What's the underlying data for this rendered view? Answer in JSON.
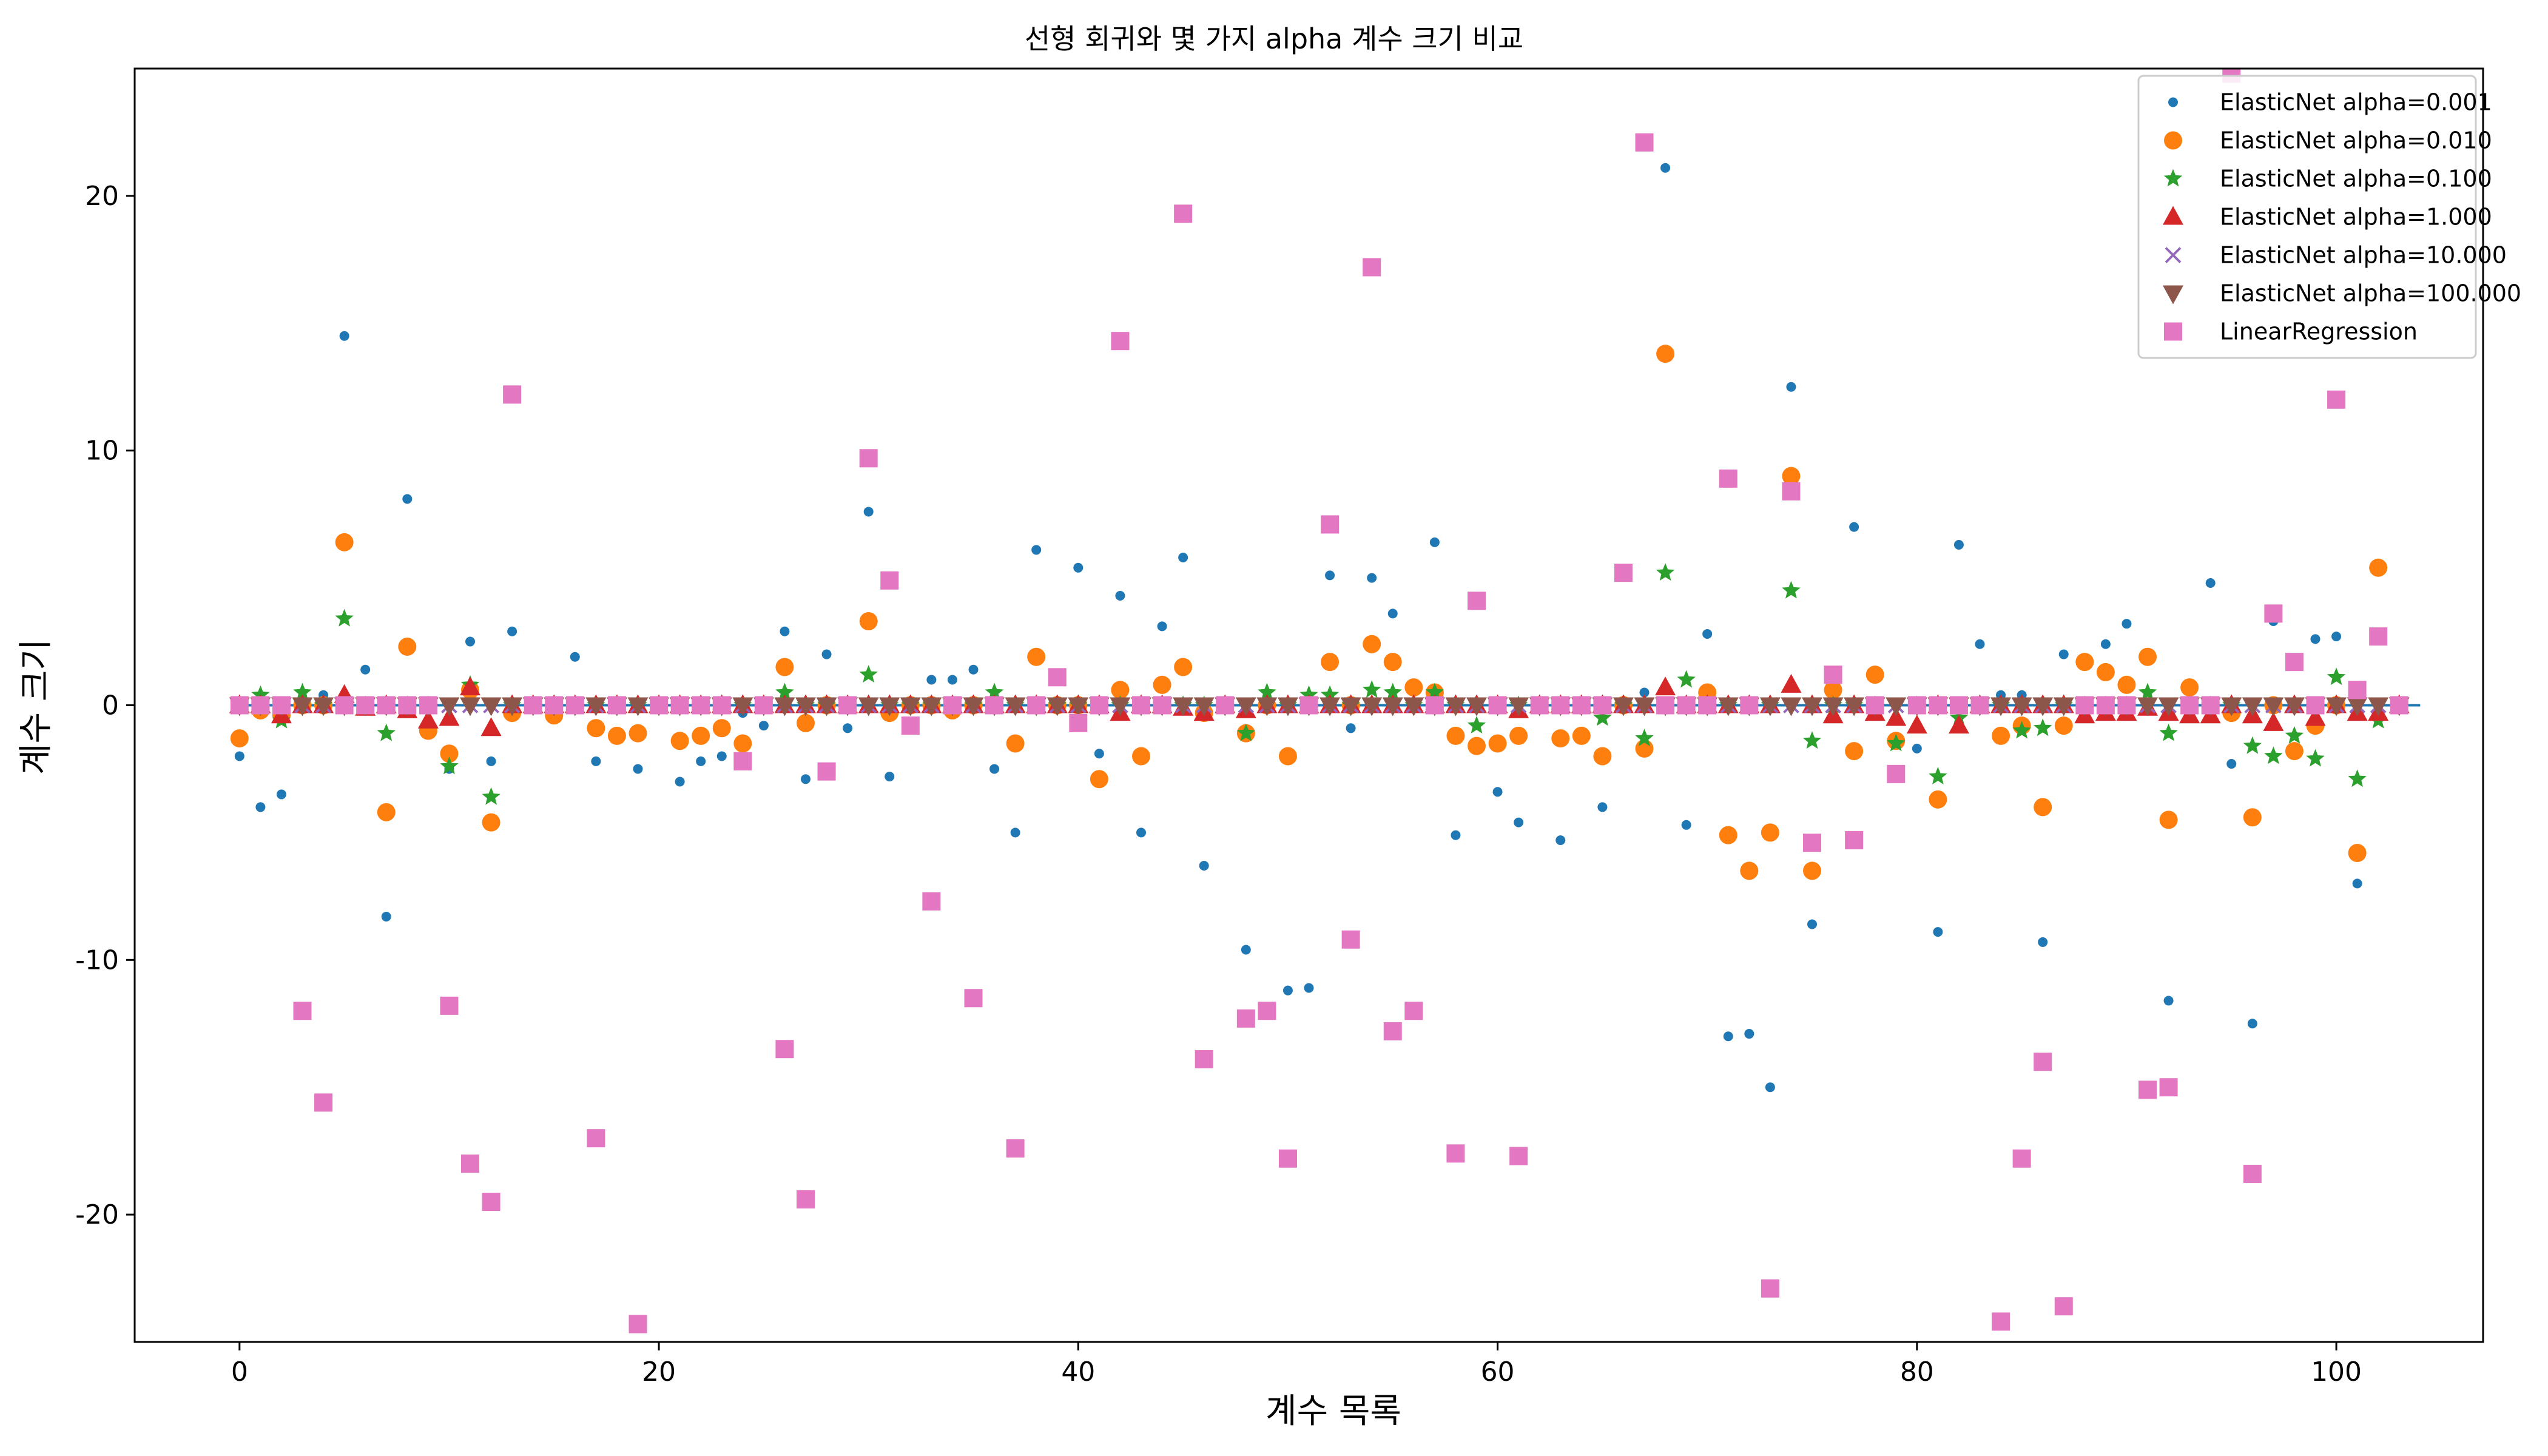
{
  "chart_data": {
    "type": "scatter",
    "title": "선형 회귀와 몇 가지 alpha 계수 크기 비교",
    "xlabel": "계수 목록",
    "ylabel": "계수 크기",
    "xlim": [
      -5,
      107
    ],
    "ylim": [
      -25,
      25
    ],
    "xticks": [
      0,
      20,
      40,
      60,
      80,
      100
    ],
    "yticks": [
      -20,
      -10,
      0,
      10,
      20
    ],
    "grid": false,
    "legend_position": "top-right",
    "hline": {
      "y": 0,
      "x_range": [
        0,
        104
      ],
      "color": "#1f77b4"
    },
    "series": [
      {
        "name": "ElasticNet alpha=0.001",
        "marker": "dot",
        "color": "#1f77b4",
        "y": [
          -2.0,
          -4.0,
          -3.5,
          0.0,
          0.4,
          14.5,
          1.4,
          -8.3,
          8.1,
          -0.8,
          -2.5,
          2.5,
          -2.2,
          2.9,
          0.0,
          0.0,
          1.9,
          -2.2,
          0.0,
          -2.5,
          0.0,
          -3.0,
          -2.2,
          -2.0,
          -0.3,
          -0.8,
          2.9,
          -2.9,
          2.0,
          -0.9,
          7.6,
          -2.8,
          0.0,
          1.0,
          1.0,
          1.4,
          -2.5,
          -5.0,
          6.1,
          0.0,
          5.4,
          -1.9,
          4.3,
          -5.0,
          3.1,
          5.8,
          -6.3,
          0.0,
          -9.6,
          0.0,
          -11.2,
          -11.1,
          5.1,
          -0.9,
          5.0,
          3.6,
          0.0,
          6.4,
          -5.1,
          0.0,
          -3.4,
          -4.6,
          0.0,
          -5.3,
          0.0,
          -4.0,
          0.0,
          0.5,
          21.1,
          -4.7,
          2.8,
          -13.0,
          -12.9,
          -15.0,
          12.5,
          -8.6,
          0.4,
          7.0,
          0.0,
          -0.5,
          -1.7,
          -8.9,
          6.3,
          2.4,
          0.4,
          0.4,
          -9.3,
          2.0,
          0.0,
          2.4,
          3.2,
          0.0,
          -11.6,
          0.0,
          4.8,
          -2.3,
          -12.5,
          3.3,
          0.0,
          2.6,
          2.7,
          -7.0,
          0.0,
          0.0
        ]
      },
      {
        "name": "ElasticNet alpha=0.010",
        "marker": "circle",
        "color": "#ff7f0e",
        "y": [
          -1.3,
          -0.2,
          -0.4,
          0.0,
          0.0,
          6.4,
          0.0,
          -4.2,
          2.3,
          -1.0,
          -1.9,
          0.6,
          -4.6,
          -0.3,
          0.0,
          -0.4,
          0.0,
          -0.9,
          -1.2,
          -1.1,
          0.0,
          -1.4,
          -1.2,
          -0.9,
          -1.5,
          0.0,
          1.5,
          -0.7,
          0.0,
          0.0,
          3.3,
          -0.3,
          0.0,
          0.0,
          -0.2,
          0.0,
          0.0,
          -1.5,
          1.9,
          0.0,
          0.0,
          -2.9,
          0.6,
          -2.0,
          0.8,
          1.5,
          -0.3,
          0.0,
          -1.1,
          0.0,
          -2.0,
          0.0,
          1.7,
          0.0,
          2.4,
          1.7,
          0.7,
          0.5,
          -1.2,
          -1.6,
          -1.5,
          -1.2,
          0.0,
          -1.3,
          -1.2,
          -2.0,
          0.0,
          -1.7,
          13.8,
          0.0,
          0.5,
          -5.1,
          -6.5,
          -5.0,
          9.0,
          -6.5,
          0.6,
          -1.8,
          1.2,
          -1.4,
          0.0,
          -3.7,
          0.0,
          0.0,
          -1.2,
          -0.8,
          -4.0,
          -0.8,
          1.7,
          1.3,
          0.8,
          1.9,
          -4.5,
          0.7,
          0.0,
          -0.3,
          -4.4,
          0.0,
          -1.8,
          -0.8,
          0.0,
          -5.8,
          5.4,
          0.0
        ]
      },
      {
        "name": "ElasticNet alpha=0.100",
        "marker": "star",
        "color": "#2ca02c",
        "y": [
          0.0,
          0.4,
          -0.6,
          0.5,
          0.0,
          3.4,
          0.0,
          -1.1,
          0.0,
          0.0,
          -2.4,
          0.8,
          -3.6,
          0.0,
          0.0,
          0.0,
          0.0,
          0.0,
          0.0,
          0.0,
          0.0,
          0.0,
          0.0,
          0.0,
          0.0,
          0.0,
          0.5,
          0.0,
          0.0,
          0.0,
          1.2,
          0.0,
          0.0,
          0.0,
          0.0,
          0.0,
          0.5,
          0.0,
          0.0,
          0.0,
          0.0,
          0.0,
          0.0,
          0.0,
          0.0,
          0.0,
          0.0,
          0.0,
          -1.1,
          0.5,
          0.0,
          0.4,
          0.4,
          0.0,
          0.6,
          0.5,
          0.0,
          0.5,
          0.0,
          -0.8,
          0.0,
          0.0,
          0.0,
          0.0,
          0.0,
          -0.5,
          0.0,
          -1.3,
          5.2,
          1.0,
          0.0,
          0.0,
          0.0,
          0.0,
          4.5,
          -1.4,
          0.0,
          0.0,
          0.0,
          -1.5,
          0.0,
          -2.8,
          -0.5,
          0.0,
          0.0,
          -1.0,
          -0.9,
          0.0,
          0.0,
          0.0,
          0.0,
          0.5,
          -1.1,
          0.0,
          0.0,
          0.0,
          -1.6,
          -2.0,
          -1.2,
          -2.1,
          1.1,
          -2.9,
          -0.6,
          0.0
        ]
      },
      {
        "name": "ElasticNet alpha=1.000",
        "marker": "triangle",
        "color": "#d62728",
        "y": [
          0.0,
          0.0,
          -0.4,
          0.0,
          0.0,
          0.4,
          -0.1,
          0.0,
          -0.2,
          -0.6,
          -0.5,
          0.7,
          -0.9,
          0.0,
          0.0,
          0.0,
          0.0,
          0.0,
          0.0,
          0.0,
          0.0,
          0.0,
          0.0,
          0.0,
          0.0,
          0.0,
          0.0,
          0.0,
          0.0,
          0.0,
          0.0,
          0.0,
          0.0,
          0.0,
          0.0,
          0.0,
          0.0,
          0.0,
          0.0,
          0.0,
          0.0,
          0.0,
          -0.3,
          0.0,
          0.0,
          -0.1,
          -0.3,
          0.0,
          -0.2,
          0.0,
          0.0,
          0.0,
          0.0,
          0.0,
          0.0,
          0.0,
          0.0,
          0.0,
          0.0,
          0.0,
          0.0,
          -0.2,
          0.0,
          0.0,
          0.0,
          0.0,
          0.0,
          0.0,
          0.7,
          0.0,
          0.0,
          0.0,
          0.0,
          0.0,
          0.8,
          0.0,
          -0.4,
          0.0,
          -0.3,
          -0.5,
          -0.8,
          0.0,
          -0.8,
          0.0,
          0.0,
          0.0,
          0.0,
          0.0,
          -0.4,
          -0.3,
          -0.3,
          -0.1,
          -0.3,
          -0.4,
          -0.4,
          0.0,
          -0.4,
          -0.7,
          0.0,
          -0.5,
          0.0,
          -0.3,
          -0.3,
          0.0
        ]
      },
      {
        "name": "ElasticNet alpha=10.000",
        "marker": "x",
        "color": "#9467bd",
        "y": [
          0,
          0,
          0,
          0,
          0,
          0,
          0,
          0,
          0,
          0,
          0,
          0,
          0,
          0,
          0,
          0,
          0,
          0,
          0,
          0,
          0,
          0,
          0,
          0,
          0,
          0,
          0,
          0,
          0,
          0,
          0,
          0,
          0,
          0,
          0,
          0,
          0,
          0,
          0,
          0,
          0,
          0,
          0,
          0,
          0,
          0,
          0,
          0,
          0,
          0,
          0,
          0,
          0,
          0,
          0,
          0,
          0,
          0,
          0,
          0,
          0,
          0,
          0,
          0,
          0,
          0,
          0,
          0,
          0,
          0,
          0,
          0,
          0,
          0,
          0,
          0,
          0,
          0,
          0,
          0,
          0,
          0,
          0,
          0,
          0,
          0,
          0,
          0,
          0,
          0,
          0,
          0,
          0,
          0,
          0,
          0,
          0,
          0,
          0,
          0,
          0,
          0,
          0,
          0
        ]
      },
      {
        "name": "ElasticNet alpha=100.000",
        "marker": "triangle-down",
        "color": "#8c564b",
        "y": [
          0,
          0,
          0,
          0,
          0,
          0,
          0,
          0,
          0,
          0,
          0,
          0,
          0,
          0,
          0,
          0,
          0,
          0,
          0,
          0,
          0,
          0,
          0,
          0,
          0,
          0,
          0,
          0,
          0,
          0,
          0,
          0,
          0,
          0,
          0,
          0,
          0,
          0,
          0,
          0,
          0,
          0,
          0,
          0,
          0,
          0,
          0,
          0,
          0,
          0,
          0,
          0,
          0,
          0,
          0,
          0,
          0,
          0,
          0,
          0,
          0,
          0,
          0,
          0,
          0,
          0,
          0,
          0,
          0,
          0,
          0,
          0,
          0,
          0,
          0,
          0,
          0,
          0,
          0,
          0,
          0,
          0,
          0,
          0,
          0,
          0,
          0,
          0,
          0,
          0,
          0,
          0,
          0,
          0,
          0,
          0,
          0,
          0,
          0,
          0,
          0,
          0,
          0,
          0
        ]
      },
      {
        "name": "LinearRegression",
        "marker": "square",
        "color": "#e377c2",
        "y": [
          0.0,
          0.0,
          0.0,
          -12.0,
          -15.6,
          0.0,
          0.0,
          0.0,
          0.0,
          0.0,
          -11.8,
          -18.0,
          -19.5,
          12.2,
          0.0,
          0.0,
          0.0,
          -17.0,
          0.0,
          -24.3,
          0.0,
          0.0,
          0.0,
          0.0,
          -2.2,
          0.0,
          -13.5,
          -19.4,
          -2.6,
          0.0,
          9.7,
          4.9,
          -0.8,
          -7.7,
          0.0,
          -11.5,
          0.0,
          -17.4,
          0.0,
          1.1,
          -0.7,
          0.0,
          14.3,
          0.0,
          0.0,
          19.3,
          -13.9,
          0.0,
          -12.3,
          -12.0,
          -17.8,
          0.0,
          7.1,
          -9.2,
          17.2,
          -12.8,
          -12.0,
          0.0,
          -17.6,
          4.1,
          0.0,
          -17.7,
          0.0,
          0.0,
          0.0,
          0.0,
          5.2,
          22.1,
          0.0,
          0.0,
          0.0,
          8.9,
          0.0,
          -22.9,
          8.4,
          -5.4,
          1.2,
          -5.3,
          0.0,
          -2.7,
          0.0,
          0.0,
          0.0,
          0.0,
          -24.2,
          -17.8,
          -14.0,
          -23.6,
          0.0,
          0.0,
          0.0,
          -15.1,
          -15.0,
          0.0,
          0.0,
          24.8,
          -18.4,
          3.6,
          1.7,
          0.0,
          12.0,
          0.6,
          2.7,
          0.0
        ]
      }
    ]
  }
}
